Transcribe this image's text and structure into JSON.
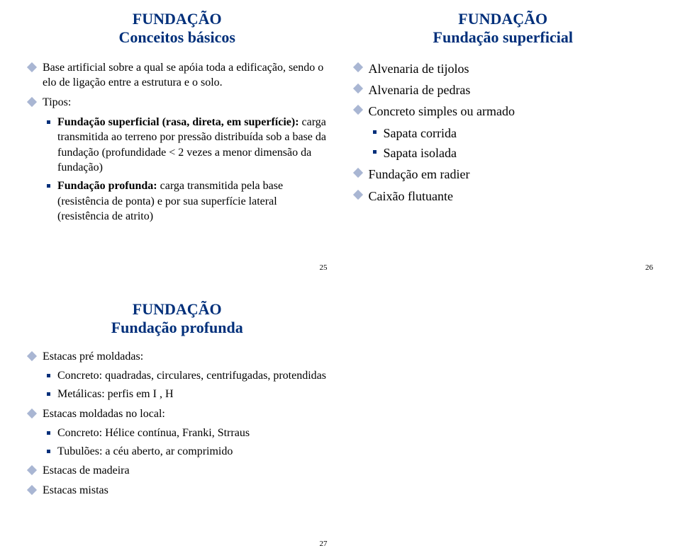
{
  "colors": {
    "title": "#002f7a",
    "text": "#000000",
    "l1_marker": "#a9b6d3",
    "l2_marker": "#002f7a",
    "l3_marker": "#002f7a",
    "background": "#ffffff"
  },
  "slide25": {
    "title_line1": "FUNDAÇÃO",
    "title_line2": "Conceitos básicos",
    "page_num": "25",
    "items": [
      {
        "level": 1,
        "text": "Base artificial sobre a qual se apóia toda a edificação, sendo o elo de ligação entre a estrutura e o solo."
      },
      {
        "level": 1,
        "text": "Tipos:"
      },
      {
        "level": 2,
        "text_pre": "Fundação superficial (rasa, direta, em superfície): ",
        "text_post": "carga transmitida ao terreno por pressão distribuída sob a base da fundação (profundidade < 2 vezes a menor dimensão da fundação)",
        "bold_pre": true
      },
      {
        "level": 2,
        "text_pre": "Fundação profunda: ",
        "text_post": "carga transmitida pela base (resistência de ponta) e por sua superfície lateral (resistência de atrito)",
        "bold_pre": true
      }
    ]
  },
  "slide26": {
    "title_line1": "FUNDAÇÃO",
    "title_line2": "Fundação superficial",
    "page_num": "26",
    "items": [
      {
        "level": 1,
        "text": "Alvenaria de tijolos"
      },
      {
        "level": 1,
        "text": "Alvenaria de pedras"
      },
      {
        "level": 1,
        "text": "Concreto simples ou armado"
      },
      {
        "level": 2,
        "text": "Sapata corrida"
      },
      {
        "level": 2,
        "text": "Sapata isolada"
      },
      {
        "level": 1,
        "text": "Fundação em radier"
      },
      {
        "level": 1,
        "text": "Caixão flutuante"
      }
    ]
  },
  "slide27": {
    "title_line1": "FUNDAÇÃO",
    "title_line2": "Fundação profunda",
    "page_num": "27",
    "items": [
      {
        "level": 1,
        "text": "Estacas pré moldadas:"
      },
      {
        "level": 2,
        "text": "Concreto:  quadradas, circulares, centrifugadas, protendidas"
      },
      {
        "level": 2,
        "text": "Metálicas: perfis em I , H"
      },
      {
        "level": 1,
        "text": "Estacas moldadas no local:"
      },
      {
        "level": 2,
        "text": "Concreto: Hélice contínua, Franki, Strraus"
      },
      {
        "level": 2,
        "text": "Tubulões: a céu aberto, ar comprimido"
      },
      {
        "level": 1,
        "text": "Estacas de madeira"
      },
      {
        "level": 1,
        "text": "Estacas mistas"
      }
    ]
  }
}
